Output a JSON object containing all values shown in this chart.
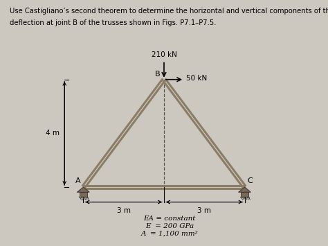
{
  "title_line1": "Use Castigliano’s second theorem to determine the horizontal and vertical components of the",
  "title_line2": "deflection at joint B of the trusses shown in Figs. P7.1–P7.5.",
  "background_color": "#ccc8c0",
  "nodes": {
    "A": [
      0,
      0
    ],
    "B": [
      3,
      4
    ],
    "C": [
      6,
      0
    ]
  },
  "load_210_label": "210 kN",
  "load_50_label": "50 kN",
  "label_4m": "4 m",
  "label_3m_left": "3 m",
  "label_3m_right": "3 m",
  "eq_line1": "EA = constant",
  "eq_line2": "E  = 200 GPa",
  "eq_line3": "A  = 1,100 mm²",
  "truss_color": "#8b7d65",
  "truss_color2": "#a89070",
  "line_width": 2.2,
  "node_label_A": "A",
  "node_label_B": "B",
  "node_label_C": "C"
}
